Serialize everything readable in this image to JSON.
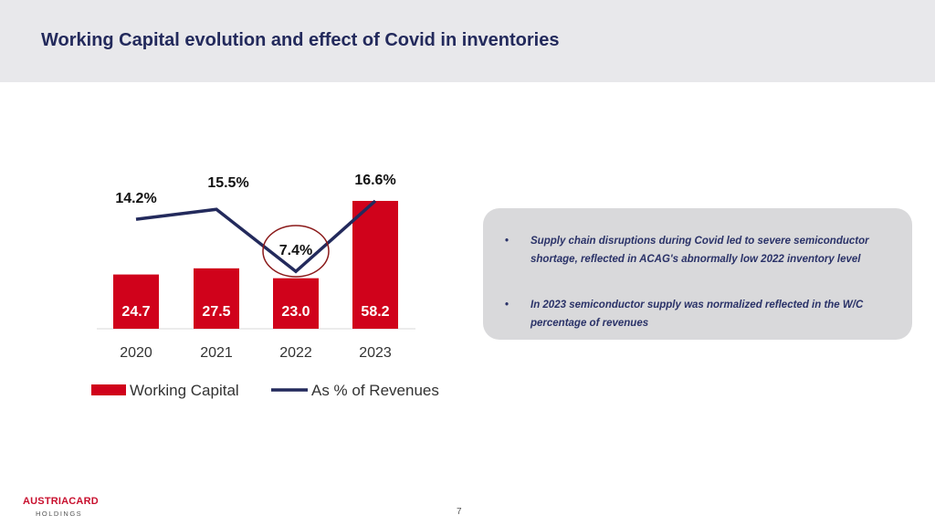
{
  "header": {
    "title": "Working Capital evolution and effect of Covid in inventories"
  },
  "chart_data": {
    "type": "bar",
    "categories": [
      "2020",
      "2021",
      "2022",
      "2023"
    ],
    "series": [
      {
        "name": "Working Capital",
        "kind": "bar",
        "values": [
          24.7,
          27.5,
          23.0,
          58.2
        ],
        "labels": [
          "24.7",
          "27.5",
          "23.0",
          "58.2"
        ],
        "color": "#d0021b"
      },
      {
        "name": "As % of Revenues",
        "kind": "line",
        "values": [
          14.2,
          15.5,
          7.4,
          16.6
        ],
        "labels": [
          "14.2%",
          "15.5%",
          "7.4%",
          "16.6%"
        ],
        "color": "#232a5c"
      }
    ],
    "highlight": {
      "category": "2022",
      "series": "As % of Revenues",
      "shape": "circle",
      "color": "#8b1a1a"
    },
    "legend_position": "bottom-left",
    "grid": false,
    "title": "",
    "xlabel": "",
    "ylabel": ""
  },
  "callout": {
    "bullet_char": "•",
    "bullets": [
      "Supply chain disruptions during Covid led to severe semiconductor shortage, reflected in ACAG's abnormally low 2022 inventory level",
      "In 2023 semiconductor supply was normalized reflected in the W/C percentage of revenues"
    ]
  },
  "footer": {
    "logo_main": "AUSTRIACARD",
    "logo_sub": "HOLDINGS",
    "page_number": "7"
  },
  "colors": {
    "header_bg": "#e8e8eb",
    "title": "#232a5c",
    "bar": "#d0021b",
    "line": "#232a5c",
    "callout_bg": "#d9d9db"
  }
}
